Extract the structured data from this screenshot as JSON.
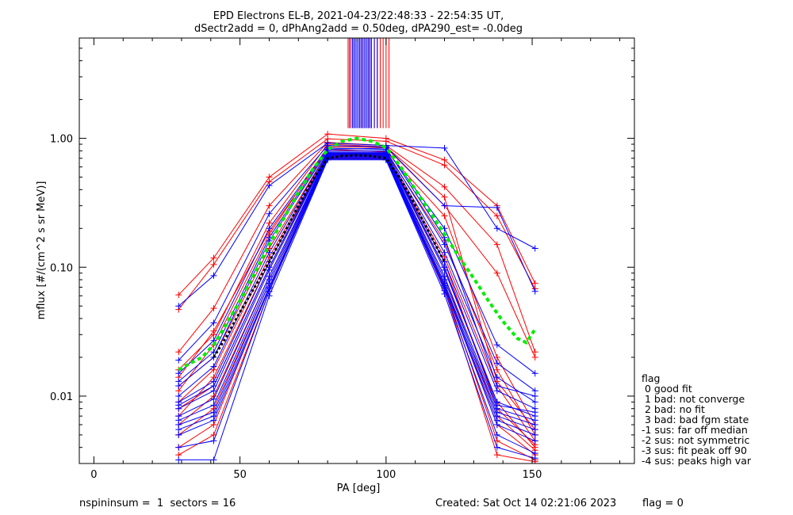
{
  "title_line1": "EPD Electrons EL-B, 2021-04-23/22:48:33 - 22:54:35 UT,",
  "title_line2": "dSectr2add = 0, dPhAng2add = 0.50deg, dPA290_est=  -0.0deg",
  "footer": {
    "left": "nspininsum =  1  sectors = 16",
    "created": "Created: Sat Oct 14 02:21:06 2023",
    "flag": "flag = 0"
  },
  "legend": {
    "title": "flag",
    "entries": [
      " 0 good fit",
      " 1 bad: not converge",
      " 2 bad: no fit",
      " 3 bad: bad fgm state",
      "-1 sus: far off median",
      "-2 sus: not symmetric",
      "-3 sus: fit peak off 90",
      "-4 sus: peaks high var"
    ]
  },
  "colors": {
    "red": "#ff0000",
    "blue": "#0000ff",
    "green": "#00ee00",
    "black": "#000000"
  },
  "chart_data": {
    "type": "line",
    "xlabel": "PA [deg]",
    "ylabel": "mflux [#/(cm^2 s sr MeV)]",
    "xlim": [
      -5,
      185
    ],
    "ylim": [
      0.003,
      6.0
    ],
    "yscale": "log",
    "x_ticks": [
      0,
      50,
      100,
      150
    ],
    "x_tick_labels": [
      "0",
      "50",
      "100",
      "150"
    ],
    "y_ticks": [
      0.01,
      0.1,
      1.0
    ],
    "y_tick_labels": [
      "0.01",
      "0.10",
      "1.00"
    ],
    "series": [
      {
        "color": "red",
        "x": [
          29,
          41,
          60,
          80,
          100,
          120,
          138,
          151
        ],
        "y": [
          0.061,
          0.118,
          0.5,
          1.08,
          1.0,
          0.68,
          0.3,
          0.075
        ]
      },
      {
        "color": "red",
        "x": [
          29,
          41,
          60,
          80,
          100,
          120,
          138,
          151
        ],
        "y": [
          0.047,
          0.105,
          0.46,
          0.99,
          0.95,
          0.62,
          0.25,
          0.068
        ]
      },
      {
        "color": "red",
        "x": [
          29,
          41,
          60,
          80,
          100,
          120,
          138,
          151
        ],
        "y": [
          0.022,
          0.048,
          0.3,
          0.93,
          0.88,
          0.42,
          0.15,
          0.022
        ]
      },
      {
        "color": "red",
        "x": [
          29,
          41,
          60,
          80,
          100,
          120,
          138,
          151
        ],
        "y": [
          0.014,
          0.032,
          0.19,
          0.82,
          0.79,
          0.25,
          0.02,
          0.006
        ]
      },
      {
        "color": "red",
        "x": [
          29,
          41,
          60,
          80,
          100,
          120,
          138,
          151
        ],
        "y": [
          0.012,
          0.02,
          0.14,
          0.78,
          0.78,
          0.16,
          0.016,
          0.005
        ]
      },
      {
        "color": "red",
        "x": [
          29,
          41,
          60,
          80,
          100,
          120,
          138,
          151
        ],
        "y": [
          0.009,
          0.016,
          0.12,
          0.76,
          0.76,
          0.12,
          0.012,
          0.0045
        ]
      },
      {
        "color": "red",
        "x": [
          29,
          41,
          60,
          80,
          100,
          120,
          138,
          151
        ],
        "y": [
          0.008,
          0.012,
          0.1,
          0.75,
          0.74,
          0.1,
          0.009,
          0.004
        ]
      },
      {
        "color": "red",
        "x": [
          29,
          41,
          60,
          80,
          100,
          120,
          138,
          151
        ],
        "y": [
          0.006,
          0.01,
          0.085,
          0.73,
          0.73,
          0.085,
          0.007,
          0.0038
        ]
      },
      {
        "color": "red",
        "x": [
          29,
          41,
          60,
          80,
          100,
          120,
          138,
          151
        ],
        "y": [
          0.005,
          0.008,
          0.075,
          0.72,
          0.72,
          0.075,
          0.006,
          0.0035
        ]
      },
      {
        "color": "red",
        "x": [
          29,
          41,
          60,
          80,
          100,
          120,
          138,
          151
        ],
        "y": [
          0.004,
          0.006,
          0.07,
          0.71,
          0.7,
          0.07,
          0.0045,
          0.0032
        ]
      },
      {
        "color": "red",
        "x": [
          29,
          41,
          60,
          80,
          100,
          120,
          138,
          151
        ],
        "y": [
          0.0035,
          0.005,
          0.065,
          0.7,
          0.69,
          0.068,
          0.0035,
          0.0031
        ]
      },
      {
        "color": "red",
        "x": [
          29,
          41,
          60,
          80,
          100,
          120,
          138,
          151
        ],
        "y": [
          0.011,
          0.025,
          0.18,
          0.86,
          0.85,
          0.3,
          0.09,
          0.02
        ]
      },
      {
        "color": "red",
        "x": [
          29,
          41,
          60,
          80,
          100,
          120,
          138,
          151
        ],
        "y": [
          0.016,
          0.03,
          0.22,
          0.9,
          0.86,
          0.35,
          0.013,
          0.0055
        ]
      },
      {
        "color": "red",
        "x": [
          29,
          41,
          60,
          80,
          100,
          120,
          138,
          151
        ],
        "y": [
          0.007,
          0.014,
          0.11,
          0.74,
          0.75,
          0.11,
          0.008,
          0.0042
        ]
      },
      {
        "color": "blue",
        "x": [
          29,
          41,
          60,
          80,
          100,
          120,
          138,
          151
        ],
        "y": [
          0.05,
          0.086,
          0.43,
          0.92,
          0.88,
          0.84,
          0.2,
          0.14
        ]
      },
      {
        "color": "blue",
        "x": [
          29,
          41,
          60,
          80,
          100,
          120,
          138,
          151
        ],
        "y": [
          0.019,
          0.037,
          0.26,
          0.88,
          0.86,
          0.3,
          0.29,
          0.065
        ]
      },
      {
        "color": "blue",
        "x": [
          29,
          41,
          60,
          80,
          100,
          120,
          138,
          151
        ],
        "y": [
          0.015,
          0.027,
          0.2,
          0.84,
          0.82,
          0.2,
          0.025,
          0.015
        ]
      },
      {
        "color": "blue",
        "x": [
          29,
          41,
          60,
          80,
          100,
          120,
          138,
          151
        ],
        "y": [
          0.012,
          0.02,
          0.16,
          0.8,
          0.8,
          0.15,
          0.018,
          0.011
        ]
      },
      {
        "color": "blue",
        "x": [
          29,
          41,
          60,
          80,
          100,
          120,
          138,
          151
        ],
        "y": [
          0.01,
          0.017,
          0.13,
          0.78,
          0.78,
          0.13,
          0.014,
          0.009
        ]
      },
      {
        "color": "blue",
        "x": [
          29,
          41,
          60,
          80,
          100,
          120,
          138,
          151
        ],
        "y": [
          0.009,
          0.013,
          0.11,
          0.76,
          0.76,
          0.11,
          0.011,
          0.008
        ]
      },
      {
        "color": "blue",
        "x": [
          29,
          41,
          60,
          80,
          100,
          120,
          138,
          151
        ],
        "y": [
          0.008,
          0.011,
          0.095,
          0.75,
          0.75,
          0.095,
          0.009,
          0.007
        ]
      },
      {
        "color": "blue",
        "x": [
          29,
          41,
          60,
          80,
          100,
          120,
          138,
          151
        ],
        "y": [
          0.007,
          0.0095,
          0.085,
          0.74,
          0.74,
          0.085,
          0.008,
          0.0065
        ]
      },
      {
        "color": "blue",
        "x": [
          29,
          41,
          60,
          80,
          100,
          120,
          138,
          151
        ],
        "y": [
          0.0065,
          0.0085,
          0.08,
          0.73,
          0.73,
          0.08,
          0.0075,
          0.006
        ]
      },
      {
        "color": "blue",
        "x": [
          29,
          41,
          60,
          80,
          100,
          120,
          138,
          151
        ],
        "y": [
          0.006,
          0.0075,
          0.075,
          0.72,
          0.72,
          0.075,
          0.007,
          0.0055
        ]
      },
      {
        "color": "blue",
        "x": [
          29,
          41,
          60,
          80,
          100,
          120,
          138,
          151
        ],
        "y": [
          0.0055,
          0.007,
          0.07,
          0.71,
          0.71,
          0.072,
          0.0065,
          0.005
        ]
      },
      {
        "color": "blue",
        "x": [
          29,
          41,
          60,
          80,
          100,
          120,
          138,
          151
        ],
        "y": [
          0.005,
          0.0065,
          0.068,
          0.7,
          0.7,
          0.07,
          0.006,
          0.0045
        ]
      },
      {
        "color": "blue",
        "x": [
          29,
          41,
          60,
          80,
          100,
          120,
          138,
          151
        ],
        "y": [
          0.004,
          0.0045,
          0.065,
          0.69,
          0.69,
          0.066,
          0.005,
          0.0036
        ]
      },
      {
        "color": "blue",
        "x": [
          29,
          41,
          60,
          80,
          100,
          120,
          138,
          151
        ],
        "y": [
          0.0032,
          0.0032,
          0.06,
          0.68,
          0.68,
          0.062,
          0.004,
          0.0033
        ]
      },
      {
        "color": "blue",
        "x": [
          29,
          41,
          60,
          80,
          100,
          120,
          138,
          151
        ],
        "y": [
          0.013,
          0.022,
          0.17,
          0.82,
          0.84,
          0.17,
          0.012,
          0.01
        ]
      },
      {
        "color": "blue",
        "x": [
          29,
          41,
          60,
          80,
          100,
          120,
          138,
          151
        ],
        "y": [
          0.0085,
          0.012,
          0.1,
          0.77,
          0.77,
          0.1,
          0.0085,
          0.0075
        ]
      },
      {
        "color": "green",
        "dashed": true,
        "x": [
          29,
          33,
          37,
          41,
          45,
          50,
          55,
          60,
          65,
          70,
          75,
          80,
          85,
          90,
          95,
          100,
          105,
          110,
          115,
          120,
          125,
          130,
          135,
          140,
          145,
          148,
          151
        ],
        "y": [
          0.016,
          0.018,
          0.02,
          0.025,
          0.035,
          0.055,
          0.09,
          0.15,
          0.24,
          0.38,
          0.58,
          0.82,
          0.95,
          1.0,
          0.95,
          0.85,
          0.6,
          0.4,
          0.27,
          0.18,
          0.12,
          0.082,
          0.055,
          0.038,
          0.028,
          0.026,
          0.033
        ]
      },
      {
        "color": "black",
        "dashed": true,
        "x": [
          41,
          45,
          50,
          55,
          60,
          65,
          70,
          75,
          80,
          85,
          90,
          95,
          100,
          105,
          110,
          115,
          120
        ],
        "y": [
          0.02,
          0.028,
          0.045,
          0.07,
          0.11,
          0.18,
          0.3,
          0.48,
          0.7,
          0.73,
          0.74,
          0.73,
          0.7,
          0.48,
          0.3,
          0.18,
          0.11
        ]
      }
    ],
    "fit_peak_lines": {
      "color_red_x": [
        87.0,
        88.0,
        89.0,
        90.0,
        91.0,
        92.0,
        93.0,
        94.0,
        95.0,
        96.0,
        97.0,
        98.0,
        99.0,
        100.0,
        101.0
      ],
      "color_blue_x": [
        87.5,
        88.5,
        89.0,
        89.5,
        90.0,
        90.5,
        91.0,
        91.5,
        92.0,
        92.5,
        93.0,
        93.5,
        94.0,
        94.5,
        95.0,
        96.0,
        97.0
      ],
      "y_bottom": 1.2,
      "y_top": 6.0
    }
  }
}
